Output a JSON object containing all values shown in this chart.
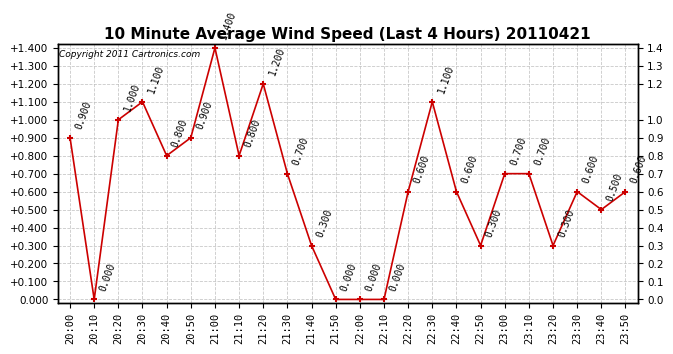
{
  "title": "10 Minute Average Wind Speed (Last 4 Hours) 20110421",
  "copyright": "Copyright 2011 Cartronics.com",
  "x_labels": [
    "20:00",
    "20:10",
    "20:20",
    "20:30",
    "20:40",
    "20:50",
    "21:00",
    "21:10",
    "21:20",
    "21:30",
    "21:40",
    "21:50",
    "22:00",
    "22:10",
    "22:20",
    "22:30",
    "22:40",
    "22:50",
    "23:00",
    "23:10",
    "23:20",
    "23:30",
    "23:40",
    "23:50"
  ],
  "y_values": [
    0.9,
    0.0,
    1.0,
    1.1,
    0.8,
    0.9,
    1.4,
    0.8,
    1.2,
    0.7,
    0.3,
    0.0,
    0.0,
    0.0,
    0.6,
    1.1,
    0.6,
    0.3,
    0.7,
    0.7,
    0.3,
    0.6,
    0.5,
    0.6
  ],
  "right_y_ticks": [
    0.0,
    0.1,
    0.2,
    0.3,
    0.4,
    0.5,
    0.6,
    0.7,
    0.8,
    0.9,
    1.0,
    1.2,
    1.3,
    1.4
  ],
  "line_color": "#cc0000",
  "marker": "+",
  "background_color": "#ffffff",
  "grid_color": "#bbbbbb",
  "title_fontsize": 11,
  "tick_fontsize": 7.5,
  "annotation_fontsize": 7,
  "annotation_rotation": 70,
  "ylim_min": 0.0,
  "ylim_max": 1.4
}
